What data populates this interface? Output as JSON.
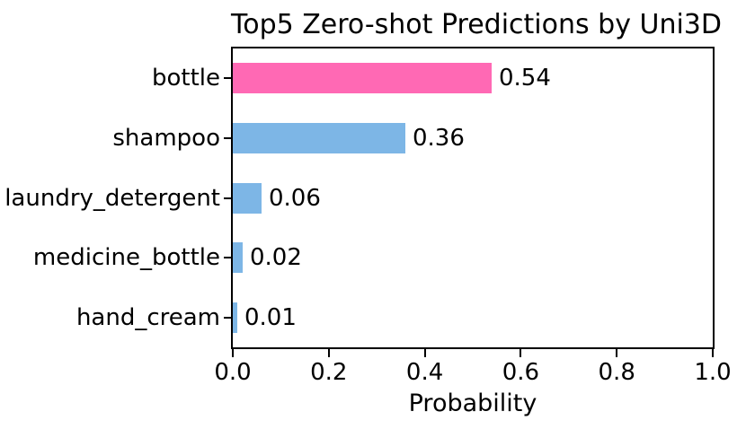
{
  "chart_data": {
    "type": "bar",
    "orientation": "horizontal",
    "title": "Top5 Zero-shot Predictions by Uni3D",
    "categories": [
      "bottle",
      "shampoo",
      "laundry_detergent",
      "medicine_bottle",
      "hand_cream"
    ],
    "values": [
      0.54,
      0.36,
      0.06,
      0.02,
      0.01
    ],
    "value_labels": [
      "0.54",
      "0.36",
      "0.06",
      "0.02",
      "0.01"
    ],
    "bar_colors": [
      "#FF69B4",
      "#7DB6E6",
      "#7DB6E6",
      "#7DB6E6",
      "#7DB6E6"
    ],
    "xlabel": "Probability",
    "xlim": [
      0.0,
      1.0
    ],
    "x_ticks": [
      0.0,
      0.2,
      0.4,
      0.6,
      0.8,
      1.0
    ],
    "x_tick_labels": [
      "0.0",
      "0.2",
      "0.4",
      "0.6",
      "0.8",
      "1.0"
    ],
    "grid": false,
    "spine_color": "#000000",
    "text_color": "#000000",
    "background_color": "#ffffff"
  }
}
